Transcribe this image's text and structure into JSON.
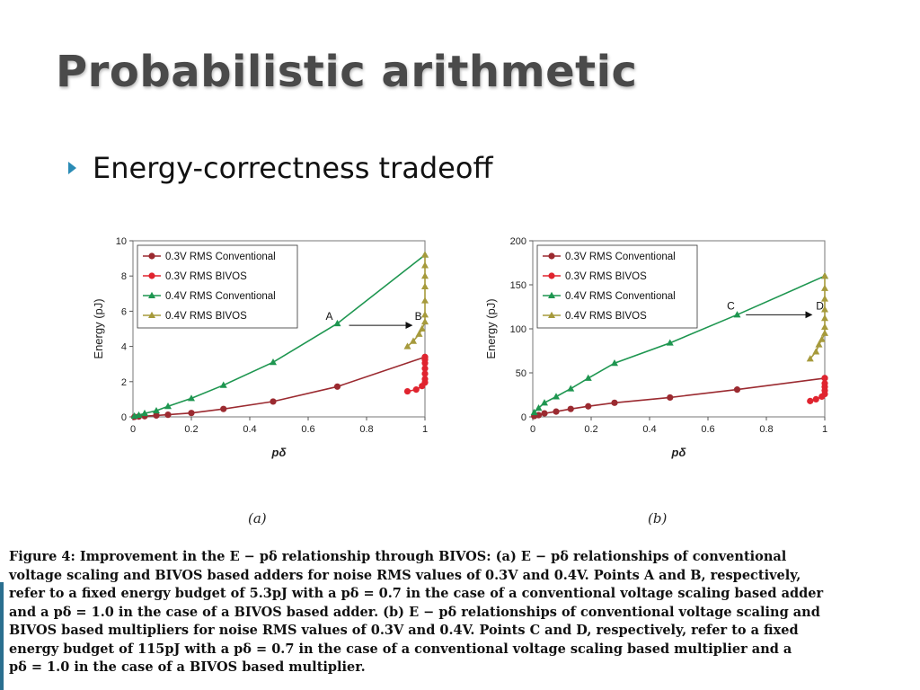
{
  "slide": {
    "title": "Probabilistic arithmetic",
    "bullet": "Energy-correctness tradeoff"
  },
  "colors": {
    "rms03_conv": "#9b2a30",
    "rms03_bivos": "#e0242f",
    "rms04_conv": "#1e9650",
    "rms04_bivos": "#a69a3c",
    "bullet": "#2a8bb5"
  },
  "chart_data": [
    {
      "type": "line",
      "subfig_label": "(a)",
      "ylabel": "Energy (pJ)",
      "xlabel": "pδ",
      "xlim": [
        0,
        1
      ],
      "ylim": [
        0,
        10
      ],
      "xticks": [
        0,
        0.2,
        0.4,
        0.6,
        0.8,
        1
      ],
      "xtick_labels": [
        "0",
        "0.2",
        "0.4",
        "0.6",
        "0.8",
        "1"
      ],
      "yticks": [
        0,
        2,
        4,
        6,
        8,
        10
      ],
      "ytick_labels": [
        "0",
        "2",
        "4",
        "6",
        "8",
        "10"
      ],
      "legend_position": "top-left",
      "grid": false,
      "series": [
        {
          "name": "0.3V RMS Conventional",
          "marker": "circle",
          "color_key": "rms03_conv",
          "x": [
            0.005,
            0.02,
            0.04,
            0.08,
            0.12,
            0.2,
            0.31,
            0.48,
            0.7,
            1.0
          ],
          "y": [
            0.0,
            0.02,
            0.04,
            0.08,
            0.12,
            0.22,
            0.45,
            0.87,
            1.72,
            3.4
          ]
        },
        {
          "name": "0.3V RMS BIVOS",
          "marker": "circle",
          "color_key": "rms03_bivos",
          "x": [
            0.94,
            0.97,
            0.99,
            1.0,
            1.0,
            1.0,
            1.0,
            1.0,
            1.0,
            1.0
          ],
          "y": [
            1.45,
            1.55,
            1.75,
            1.95,
            2.15,
            2.45,
            2.75,
            3.05,
            3.25,
            3.4
          ]
        },
        {
          "name": "0.4V RMS Conventional",
          "marker": "triangle",
          "color_key": "rms04_conv",
          "x": [
            0.005,
            0.02,
            0.04,
            0.08,
            0.12,
            0.2,
            0.31,
            0.48,
            0.7,
            1.0
          ],
          "y": [
            0.05,
            0.1,
            0.2,
            0.35,
            0.6,
            1.05,
            1.8,
            3.1,
            5.3,
            9.2
          ]
        },
        {
          "name": "0.4V RMS BIVOS",
          "marker": "triangle",
          "color_key": "rms04_bivos",
          "x": [
            0.94,
            0.96,
            0.98,
            0.99,
            1.0,
            1.0,
            1.0,
            1.0,
            1.0,
            1.0,
            1.0
          ],
          "y": [
            4.0,
            4.3,
            4.7,
            5.0,
            5.4,
            5.8,
            6.6,
            7.4,
            8.0,
            8.6,
            9.2
          ]
        }
      ],
      "annotations": [
        {
          "label": "A",
          "x": 0.66,
          "y": 5.5
        },
        {
          "label": "B",
          "x": 0.965,
          "y": 5.5
        }
      ],
      "arrow": {
        "from": [
          0.74,
          5.2
        ],
        "to": [
          0.955,
          5.2
        ]
      }
    },
    {
      "type": "line",
      "subfig_label": "(b)",
      "ylabel": "Energy (pJ)",
      "xlabel": "pδ",
      "xlim": [
        0,
        1
      ],
      "ylim": [
        0,
        200
      ],
      "xticks": [
        0,
        0.2,
        0.4,
        0.6,
        0.8,
        1
      ],
      "xtick_labels": [
        "0",
        "0.2",
        "0.4",
        "0.6",
        "0.8",
        "1"
      ],
      "yticks": [
        0,
        50,
        100,
        150,
        200
      ],
      "ytick_labels": [
        "0",
        "50",
        "100",
        "150",
        "200"
      ],
      "legend_position": "top-left",
      "grid": false,
      "series": [
        {
          "name": "0.3V RMS Conventional",
          "marker": "circle",
          "color_key": "rms03_conv",
          "x": [
            0.005,
            0.02,
            0.04,
            0.08,
            0.13,
            0.19,
            0.28,
            0.47,
            0.7,
            1.0
          ],
          "y": [
            1.0,
            2.0,
            4.0,
            6.0,
            9.0,
            12.0,
            16.0,
            22.0,
            31.0,
            44.0
          ]
        },
        {
          "name": "0.3V RMS BIVOS",
          "marker": "circle",
          "color_key": "rms03_bivos",
          "x": [
            0.95,
            0.97,
            0.99,
            1.0,
            1.0,
            1.0,
            1.0,
            1.0
          ],
          "y": [
            18.0,
            20.0,
            23.0,
            26.0,
            30.0,
            34.0,
            38.0,
            44.0
          ]
        },
        {
          "name": "0.4V RMS Conventional",
          "marker": "triangle",
          "color_key": "rms04_conv",
          "x": [
            0.005,
            0.02,
            0.04,
            0.08,
            0.13,
            0.19,
            0.28,
            0.47,
            0.7,
            1.0
          ],
          "y": [
            5.0,
            10.0,
            16.0,
            23.0,
            32.0,
            44.0,
            61.0,
            84.0,
            116.0,
            160.0
          ]
        },
        {
          "name": "0.4V RMS BIVOS",
          "marker": "triangle",
          "color_key": "rms04_bivos",
          "x": [
            0.95,
            0.97,
            0.98,
            0.99,
            1.0,
            1.0,
            1.0,
            1.0,
            1.0,
            1.0,
            1.0
          ],
          "y": [
            66.0,
            74.0,
            82.0,
            88.0,
            95.0,
            102.0,
            112.0,
            122.0,
            134.0,
            146.0,
            160.0
          ]
        }
      ],
      "annotations": [
        {
          "label": "C",
          "x": 0.665,
          "y": 122.0
        },
        {
          "label": "D",
          "x": 0.97,
          "y": 122.0
        }
      ],
      "arrow": {
        "from": [
          0.73,
          116.0
        ],
        "to": [
          0.955,
          116.0
        ]
      }
    }
  ],
  "caption": {
    "lines": [
      "Figure 4: Improvement in the E − pδ relationship through BIVOS: (a) E − pδ relationships of conventional",
      "voltage scaling and BIVOS based adders for noise RMS values of 0.3V and 0.4V. Points A and B, respectively,",
      "refer to a fixed energy budget of 5.3pJ with a pδ = 0.7 in the case of a conventional voltage scaling based adder",
      "and a pδ = 1.0 in the case of a BIVOS based adder. (b) E − pδ relationships of conventional voltage scaling and",
      "BIVOS based multipliers for noise RMS values of 0.3V and 0.4V. Points C and D, respectively, refer to a fixed",
      "energy budget of 115pJ with a pδ = 0.7 in the case of a conventional voltage scaling based multiplier and a",
      "pδ = 1.0 in the case of a BIVOS based multiplier."
    ]
  }
}
